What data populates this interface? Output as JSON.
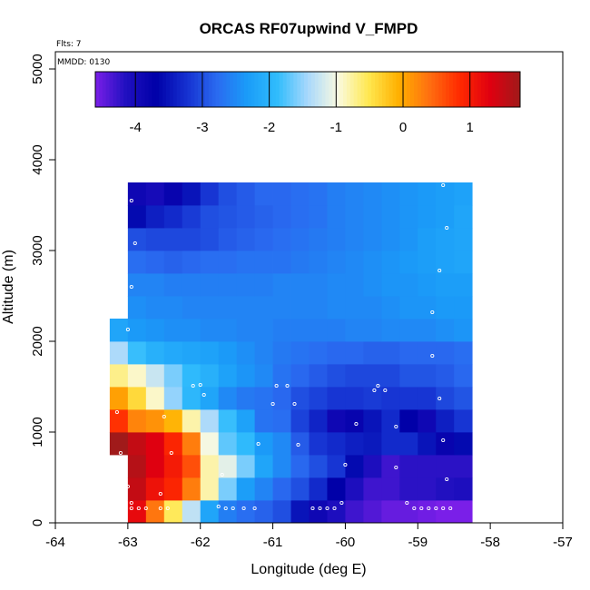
{
  "chart_data": {
    "type": "heatmap",
    "title": "ORCAS RF07upwind V_FMPD",
    "flights_label": "Flts: 7",
    "date_label": "MMDD: 0130",
    "xlabel": "Longitude (deg E)",
    "ylabel": "Altitude (m)",
    "xlim": [
      -64,
      -57
    ],
    "ylim": [
      0,
      5200
    ],
    "x_ticks": [
      -64,
      -63,
      -62,
      -61,
      -60,
      -59,
      -58,
      -57
    ],
    "y_ticks": [
      0,
      1000,
      2000,
      3000,
      4000,
      5000
    ],
    "x_tick_labels": [
      "-64",
      "-63",
      "-62",
      "-61",
      "-60",
      "-59",
      "-58",
      "-57"
    ],
    "y_tick_labels": [
      "0",
      "1000",
      "2000",
      "3000",
      "4000",
      "5000"
    ],
    "cell_width_deg": 0.25,
    "cell_height_m": 250,
    "colorbar": {
      "range": [
        -4.6,
        1.75
      ],
      "ticks": [
        -4,
        -3,
        -2,
        -1,
        0,
        1
      ],
      "tick_labels": [
        "-4",
        "-3",
        "-2",
        "-1",
        "0",
        "1"
      ],
      "colors": [
        "#7a1fe8",
        "#2010c0",
        "#0000a8",
        "#1530d0",
        "#2a6af0",
        "#1a9cf8",
        "#30bcfc",
        "#a8d8fc",
        "#fafae0",
        "#ffe850",
        "#ffb000",
        "#ff7010",
        "#ff2a00",
        "#e00010",
        "#a01a1a"
      ]
    },
    "grid": [
      {
        "y0": 0,
        "x0": -63.0,
        "values": [
          1.2,
          0.35,
          -0.55,
          -1.3,
          -2.2,
          -2.6,
          -2.75,
          -2.85,
          -3.0,
          -3.5,
          -3.9,
          -4.1,
          -4.3,
          -4.4,
          -4.5,
          -4.5,
          -4.55,
          -4.6,
          -4.6
        ]
      },
      {
        "y0": 250,
        "x0": -63.0,
        "values": [
          1.5,
          1.1,
          0.9,
          0.3,
          -0.8,
          -1.6,
          -2.3,
          -2.55,
          -2.8,
          -3.0,
          -3.3,
          -3.7,
          -4.1,
          -4.3,
          -4.3,
          -4.2,
          -4.2,
          -4.15,
          -4.1
        ]
      },
      {
        "y0": 500,
        "x0": -63.0,
        "values": [
          1.6,
          1.3,
          1.0,
          0.6,
          -0.8,
          -1.1,
          -1.6,
          -2.2,
          -2.5,
          -2.8,
          -3.0,
          -3.2,
          -3.6,
          -4.1,
          -4.3,
          -4.2,
          -4.2,
          -4.2,
          -4.2
        ]
      },
      {
        "y0": 750,
        "x0": -63.25,
        "values": [
          1.75,
          1.5,
          1.3,
          0.9,
          0.3,
          -1.0,
          -1.7,
          -1.9,
          -2.35,
          -2.5,
          -2.9,
          -3.2,
          -3.3,
          -3.4,
          -3.45,
          -3.3,
          -3.3,
          -3.5,
          -3.8,
          -3.6
        ]
      },
      {
        "y0": 1000,
        "x0": -63.25,
        "values": [
          0.8,
          0.25,
          0.15,
          -0.1,
          -0.8,
          -1.4,
          -1.85,
          -2.25,
          -2.7,
          -2.75,
          -3.1,
          -3.35,
          -3.9,
          -3.8,
          -3.5,
          -3.3,
          -3.7,
          -3.9,
          -3.4,
          -3.2
        ]
      },
      {
        "y0": 1250,
        "x0": -63.25,
        "values": [
          0.05,
          -0.4,
          -0.9,
          -1.5,
          -1.95,
          -2.2,
          -2.5,
          -2.65,
          -2.7,
          -2.8,
          -3.0,
          -3.1,
          -3.2,
          -3.2,
          -3.15,
          -3.2,
          -3.2,
          -3.2,
          -3.05,
          -2.95
        ]
      },
      {
        "y0": 1500,
        "x0": -63.25,
        "values": [
          -0.7,
          -0.9,
          -1.25,
          -1.6,
          -1.9,
          -2.05,
          -2.25,
          -2.4,
          -2.5,
          -2.7,
          -2.8,
          -2.9,
          -3.0,
          -3.05,
          -3.05,
          -3.05,
          -2.95,
          -2.95,
          -2.9,
          -2.8
        ]
      },
      {
        "y0": 1750,
        "x0": -63.25,
        "values": [
          -1.4,
          -1.85,
          -2.05,
          -2.15,
          -2.2,
          -2.25,
          -2.35,
          -2.45,
          -2.55,
          -2.65,
          -2.7,
          -2.75,
          -2.8,
          -2.8,
          -2.85,
          -2.85,
          -2.8,
          -2.8,
          -2.8,
          -2.75
        ]
      },
      {
        "y0": 2000,
        "x0": -63.25,
        "values": [
          -2.2,
          -2.35,
          -2.4,
          -2.45,
          -2.45,
          -2.5,
          -2.5,
          -2.55,
          -2.55,
          -2.6,
          -2.6,
          -2.6,
          -2.6,
          -2.55,
          -2.55,
          -2.5,
          -2.5,
          -2.5,
          -2.45,
          -2.4
        ]
      },
      {
        "y0": 2250,
        "x0": -63.0,
        "values": [
          -2.45,
          -2.5,
          -2.5,
          -2.55,
          -2.55,
          -2.55,
          -2.55,
          -2.55,
          -2.55,
          -2.55,
          -2.55,
          -2.5,
          -2.5,
          -2.5,
          -2.45,
          -2.4,
          -2.4,
          -2.35,
          -2.35
        ]
      },
      {
        "y0": 2500,
        "x0": -63.0,
        "values": [
          -2.55,
          -2.55,
          -2.6,
          -2.6,
          -2.6,
          -2.6,
          -2.6,
          -2.6,
          -2.55,
          -2.55,
          -2.55,
          -2.5,
          -2.5,
          -2.45,
          -2.4,
          -2.4,
          -2.35,
          -2.3,
          -2.3
        ]
      },
      {
        "y0": 2750,
        "x0": -63.0,
        "values": [
          -2.75,
          -2.8,
          -2.85,
          -2.8,
          -2.75,
          -2.75,
          -2.7,
          -2.7,
          -2.7,
          -2.65,
          -2.6,
          -2.55,
          -2.5,
          -2.45,
          -2.4,
          -2.35,
          -2.3,
          -2.25,
          -2.2
        ]
      },
      {
        "y0": 3000,
        "x0": -63.0,
        "values": [
          -3.0,
          -3.05,
          -3.05,
          -3.05,
          -3.0,
          -2.9,
          -2.85,
          -2.8,
          -2.75,
          -2.7,
          -2.65,
          -2.6,
          -2.55,
          -2.5,
          -2.45,
          -2.4,
          -2.3,
          -2.25,
          -2.2
        ]
      },
      {
        "y0": 3250,
        "x0": -63.0,
        "values": [
          -3.6,
          -3.4,
          -3.3,
          -3.15,
          -3.0,
          -2.95,
          -2.9,
          -2.85,
          -2.8,
          -2.75,
          -2.7,
          -2.6,
          -2.55,
          -2.5,
          -2.45,
          -2.4,
          -2.35,
          -2.3,
          -2.2
        ]
      },
      {
        "y0": 3500,
        "x0": -63.0,
        "values": [
          -3.9,
          -4.0,
          -3.8,
          -3.5,
          -3.2,
          -3.0,
          -2.9,
          -2.8,
          -2.8,
          -2.75,
          -2.7,
          -2.6,
          -2.55,
          -2.5,
          -2.45,
          -2.4,
          -2.35,
          -2.3,
          -2.25
        ]
      }
    ],
    "sample_points": [
      [
        -62.95,
        3550
      ],
      [
        -62.9,
        3080
      ],
      [
        -62.95,
        2600
      ],
      [
        -63.0,
        2130
      ],
      [
        -58.65,
        3720
      ],
      [
        -58.6,
        3250
      ],
      [
        -58.7,
        2780
      ],
      [
        -58.8,
        2320
      ],
      [
        -58.8,
        1840
      ],
      [
        -62.1,
        1510
      ],
      [
        -62.0,
        1520
      ],
      [
        -61.95,
        1410
      ],
      [
        -61.0,
        1310
      ],
      [
        -60.95,
        1510
      ],
      [
        -60.8,
        1510
      ],
      [
        -60.7,
        1310
      ],
      [
        -59.6,
        1460
      ],
      [
        -59.55,
        1510
      ],
      [
        -59.45,
        1460
      ],
      [
        -58.7,
        1370
      ],
      [
        -63.15,
        1220
      ],
      [
        -62.5,
        1170
      ],
      [
        -59.85,
        1090
      ],
      [
        -59.3,
        1060
      ],
      [
        -63.1,
        770
      ],
      [
        -62.4,
        770
      ],
      [
        -61.2,
        870
      ],
      [
        -60.65,
        860
      ],
      [
        -58.65,
        910
      ],
      [
        -60.0,
        640
      ],
      [
        -59.3,
        610
      ],
      [
        -58.6,
        480
      ],
      [
        -63.0,
        400
      ],
      [
        -62.55,
        320
      ],
      [
        -61.7,
        530
      ],
      [
        -62.95,
        220
      ],
      [
        -62.95,
        160
      ],
      [
        -62.85,
        160
      ],
      [
        -62.75,
        160
      ],
      [
        -62.55,
        160
      ],
      [
        -62.45,
        160
      ],
      [
        -61.75,
        180
      ],
      [
        -61.65,
        160
      ],
      [
        -61.55,
        160
      ],
      [
        -61.4,
        160
      ],
      [
        -61.25,
        160
      ],
      [
        -60.45,
        160
      ],
      [
        -60.35,
        160
      ],
      [
        -60.25,
        160
      ],
      [
        -60.15,
        160
      ],
      [
        -60.05,
        220
      ],
      [
        -59.15,
        220
      ],
      [
        -59.05,
        160
      ],
      [
        -58.95,
        160
      ],
      [
        -58.85,
        160
      ],
      [
        -58.75,
        160
      ],
      [
        -58.65,
        160
      ],
      [
        -58.55,
        160
      ],
      [
        -59.75,
        3870
      ]
    ]
  }
}
